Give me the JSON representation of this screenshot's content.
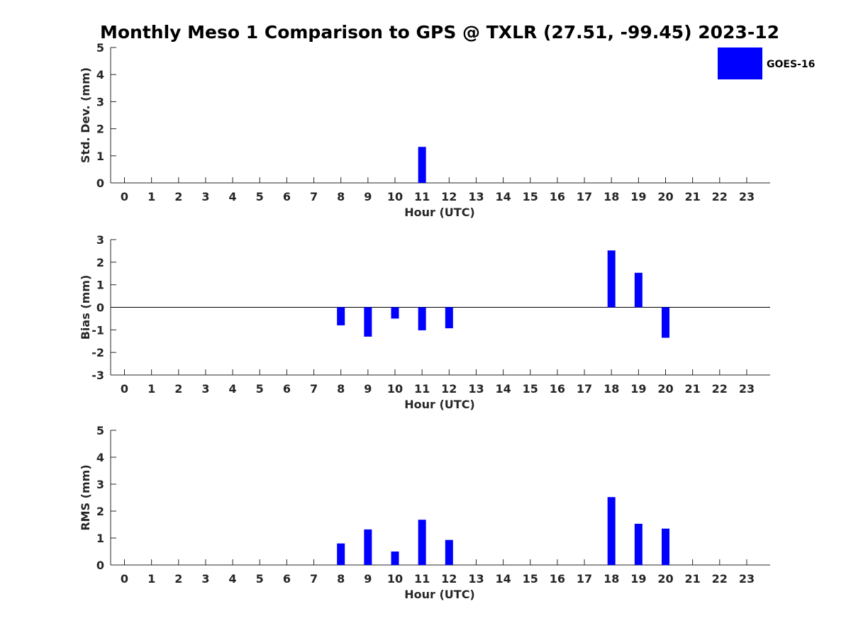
{
  "title": "Monthly Meso 1 Comparison to GPS @ TXLR (27.51, -99.45) 2023-12",
  "legend": {
    "label": "GOES-16",
    "color": "#0000ff"
  },
  "chart_data": [
    {
      "type": "bar",
      "xlabel": "Hour (UTC)",
      "ylabel": "Std. Dev. (mm)",
      "x": [
        "0",
        "1",
        "2",
        "3",
        "4",
        "5",
        "6",
        "7",
        "8",
        "9",
        "10",
        "11",
        "12",
        "13",
        "14",
        "15",
        "16",
        "17",
        "18",
        "19",
        "20",
        "21",
        "22",
        "23"
      ],
      "ylim": [
        0,
        5
      ],
      "yticks": [
        "0",
        "1",
        "2",
        "3",
        "4",
        "5"
      ],
      "grid": false,
      "series": [
        {
          "name": "GOES-16",
          "color": "#0000ff",
          "values": [
            null,
            null,
            null,
            null,
            null,
            null,
            null,
            null,
            null,
            null,
            null,
            1.33,
            null,
            null,
            null,
            null,
            null,
            null,
            null,
            null,
            null,
            null,
            null,
            null
          ]
        }
      ]
    },
    {
      "type": "bar",
      "xlabel": "Hour (UTC)",
      "ylabel": "Bias (mm)",
      "x": [
        "0",
        "1",
        "2",
        "3",
        "4",
        "5",
        "6",
        "7",
        "8",
        "9",
        "10",
        "11",
        "12",
        "13",
        "14",
        "15",
        "16",
        "17",
        "18",
        "19",
        "20",
        "21",
        "22",
        "23"
      ],
      "ylim": [
        -3,
        3
      ],
      "yticks": [
        "-3",
        "-2",
        "-1",
        "0",
        "1",
        "2",
        "3"
      ],
      "zero_line": true,
      "grid": false,
      "series": [
        {
          "name": "GOES-16",
          "color": "#0000ff",
          "values": [
            null,
            null,
            null,
            null,
            null,
            null,
            null,
            null,
            -0.8,
            -1.3,
            -0.5,
            -1.02,
            -0.93,
            null,
            null,
            null,
            null,
            null,
            2.52,
            1.53,
            -1.35,
            null,
            null,
            null
          ]
        }
      ]
    },
    {
      "type": "bar",
      "xlabel": "Hour (UTC)",
      "ylabel": "RMS (mm)",
      "x": [
        "0",
        "1",
        "2",
        "3",
        "4",
        "5",
        "6",
        "7",
        "8",
        "9",
        "10",
        "11",
        "12",
        "13",
        "14",
        "15",
        "16",
        "17",
        "18",
        "19",
        "20",
        "21",
        "22",
        "23"
      ],
      "ylim": [
        0,
        5
      ],
      "yticks": [
        "0",
        "1",
        "2",
        "3",
        "4",
        "5"
      ],
      "grid": false,
      "series": [
        {
          "name": "GOES-16",
          "color": "#0000ff",
          "values": [
            null,
            null,
            null,
            null,
            null,
            null,
            null,
            null,
            0.8,
            1.32,
            0.5,
            1.68,
            0.93,
            null,
            null,
            null,
            null,
            null,
            2.52,
            1.53,
            1.35,
            null,
            null,
            null
          ]
        }
      ]
    }
  ]
}
